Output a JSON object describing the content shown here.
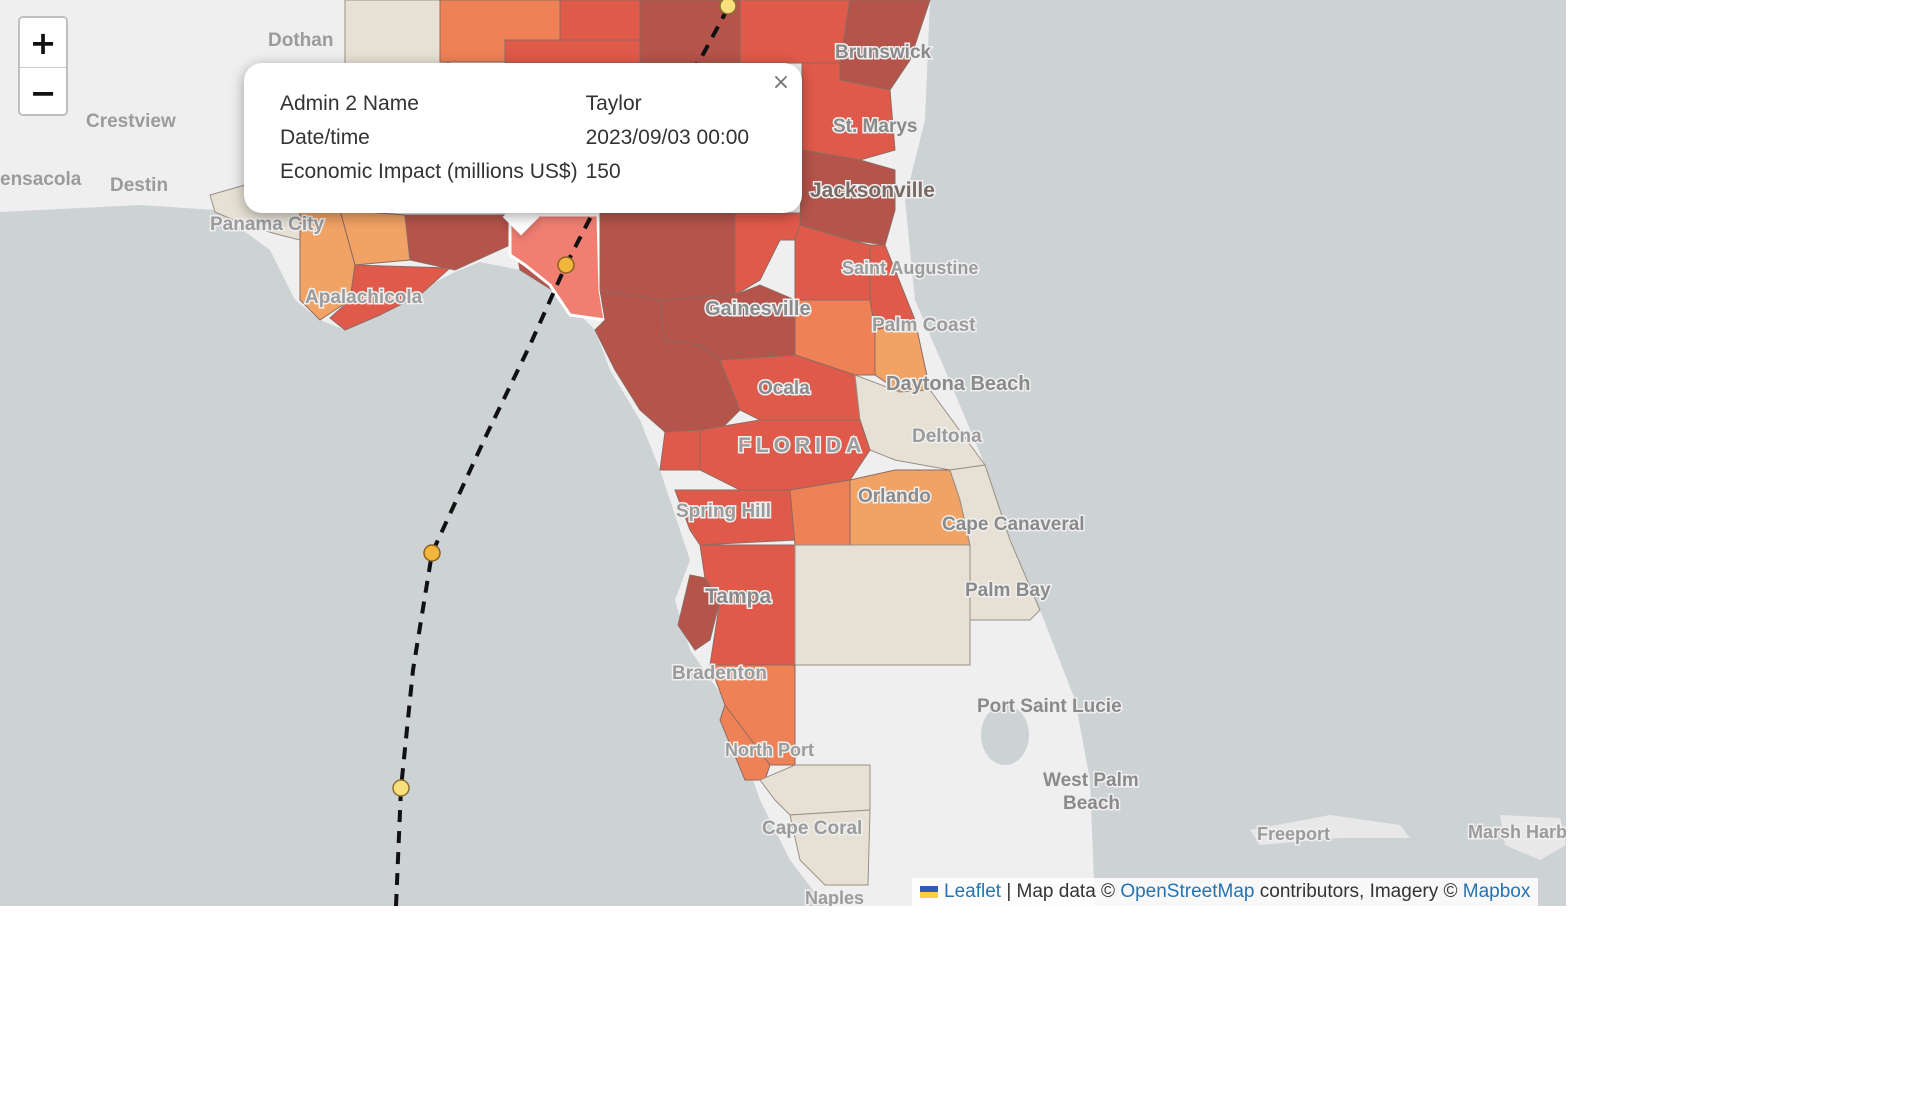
{
  "zoom": {
    "in_label": "+",
    "out_label": "−"
  },
  "popup": {
    "close_label": "×",
    "rows": [
      {
        "label": "Admin 2 Name",
        "value": "Taylor"
      },
      {
        "label": "Date/time",
        "value": "2023/09/03 00:00"
      },
      {
        "label": "Economic Impact (millions US$)",
        "value": "150"
      }
    ]
  },
  "place_labels": [
    {
      "name": "Dothan"
    },
    {
      "name": "Crestview"
    },
    {
      "name": "ensacola"
    },
    {
      "name": "Destin"
    },
    {
      "name": "Panama City"
    },
    {
      "name": "Apalachicola"
    },
    {
      "name": "Brunswick"
    },
    {
      "name": "St. Marys"
    },
    {
      "name": "Jacksonville"
    },
    {
      "name": "Saint Augustine"
    },
    {
      "name": "Gainesville"
    },
    {
      "name": "Palm Coast"
    },
    {
      "name": "Ocala"
    },
    {
      "name": "Daytona Beach"
    },
    {
      "name": "Deltona"
    },
    {
      "name": "FLORIDA"
    },
    {
      "name": "Orlando"
    },
    {
      "name": "Spring Hill"
    },
    {
      "name": "Cape Canaveral"
    },
    {
      "name": "Palm Bay"
    },
    {
      "name": "Tampa"
    },
    {
      "name": "Bradenton"
    },
    {
      "name": "Port Saint Lucie"
    },
    {
      "name": "North Port"
    },
    {
      "name": "West Palm"
    },
    {
      "name": "Beach"
    },
    {
      "name": "Cape Coral"
    },
    {
      "name": "Naples"
    },
    {
      "name": "Freeport"
    },
    {
      "name": "Marsh Harb"
    }
  ],
  "attribution": {
    "leaflet": "Leaflet",
    "sep": " | Map data © ",
    "osm": "OpenStreetMap",
    "mid": " contributors, Imagery © ",
    "mapbox": "Mapbox"
  },
  "colors": {
    "sea": "#cdd2d4",
    "land": "#efefef",
    "impact_very_high": "#b5544b",
    "impact_high": "#e05a4b",
    "impact_medium": "#ee8256",
    "impact_low": "#f1a366",
    "impact_none": "#e6e1d4",
    "selected": "#f07f72",
    "track_point_orange": "#f3b63c",
    "track_point_yellow": "#f7e07a"
  }
}
